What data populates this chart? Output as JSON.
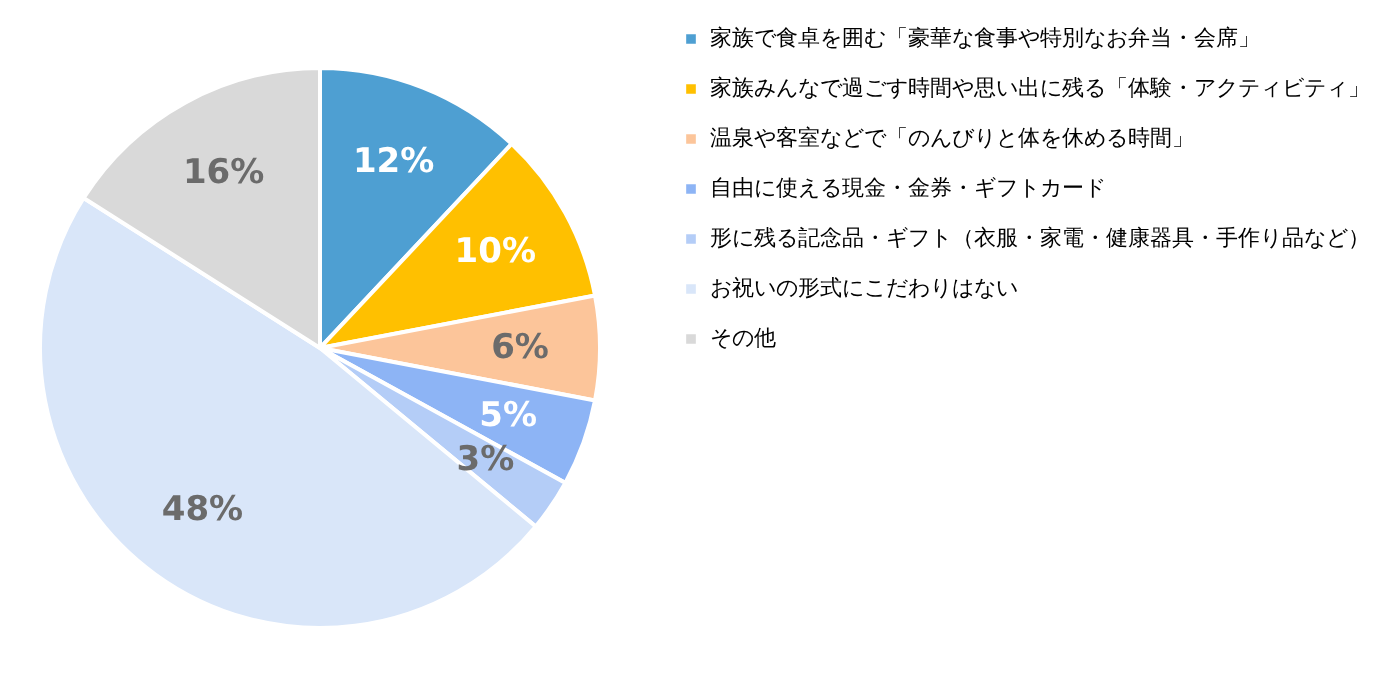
{
  "chart_data": {
    "type": "pie",
    "categories": [
      "家族で食卓を囲む「豪華な食事や特別なお弁当・会席」",
      "家族みんなで過ごす時間や思い出に残る「体験・アクティビティ」",
      "温泉や客室などで「のんびりと体を休める時間」",
      "自由に使える現金・金券・ギフトカード",
      "形に残る記念品・ギフト（衣服・家電・健康器具・手作り品など）",
      "お祝いの形式にこだわりはない",
      "その他"
    ],
    "values": [
      12,
      10,
      6,
      5,
      3,
      48,
      16
    ],
    "value_labels": [
      "12%",
      "10%",
      "6%",
      "5%",
      "3%",
      "48%",
      "16%"
    ],
    "colors": [
      "#4e9fd2",
      "#ffc000",
      "#fcc59a",
      "#8db4f5",
      "#b4cdf7",
      "#d9e6f9",
      "#d9d9d9"
    ],
    "legend": "right"
  }
}
